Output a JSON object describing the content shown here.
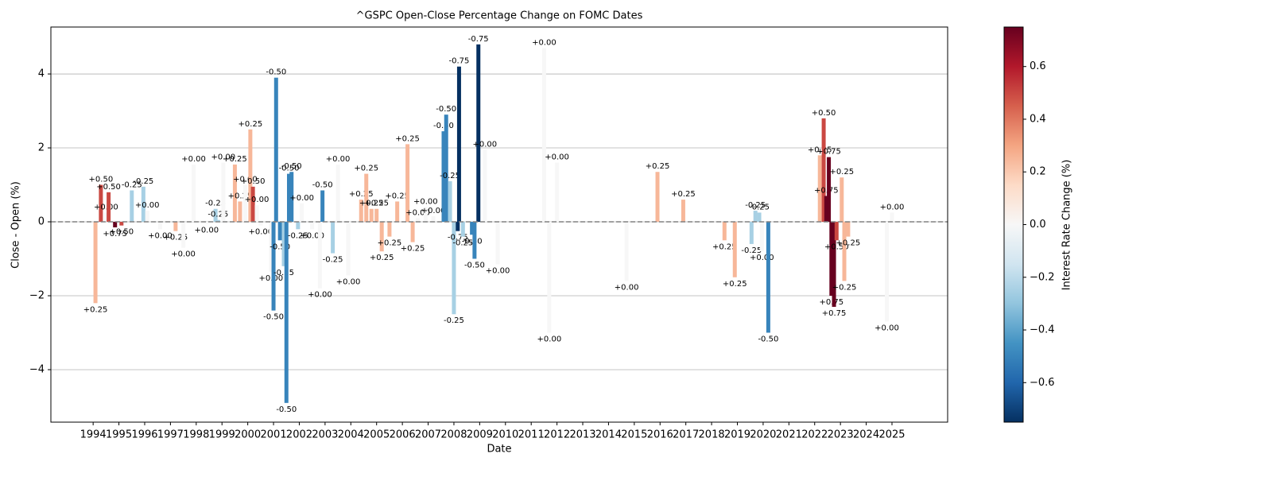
{
  "chart_data": {
    "type": "bar",
    "title": "^GSPC Open-Close Percentage Change on FOMC Dates",
    "x_label": "Date",
    "y_label": "Close - Open (%)",
    "colorbar_label": "Interest Rate Change (%)",
    "x": [
      1994.09,
      1994.3,
      1994.5,
      1994.6,
      1994.85,
      1995.1,
      1995.5,
      1995.95,
      1996.1,
      1996.6,
      1997.2,
      1997.5,
      1997.9,
      1998.4,
      1998.75,
      1998.85,
      1999.05,
      1999.5,
      1999.7,
      1999.9,
      2000.1,
      2000.2,
      2000.35,
      2000.5,
      2000.9,
      2001.0,
      2001.1,
      2001.25,
      2001.4,
      2001.5,
      2001.6,
      2001.7,
      2001.95,
      2002.1,
      2002.5,
      2002.8,
      2002.9,
      2003.3,
      2003.5,
      2003.9,
      2004.4,
      2004.6,
      2004.8,
      2005.0,
      2005.2,
      2005.5,
      2005.8,
      2006.2,
      2006.4,
      2006.6,
      2006.9,
      2007.2,
      2007.6,
      2007.7,
      2007.85,
      2008.0,
      2008.15,
      2008.2,
      2008.35,
      2008.7,
      2008.8,
      2008.95,
      2009.2,
      2009.7,
      2011.5,
      2011.7,
      2012.0,
      2014.7,
      2015.9,
      2016.9,
      2018.5,
      2018.9,
      2019.55,
      2019.7,
      2019.85,
      2019.95,
      2020.2,
      2022.2,
      2022.35,
      2022.45,
      2022.55,
      2022.65,
      2022.75,
      2022.85,
      2023.05,
      2023.15,
      2023.3,
      2024.8,
      2025.0
    ],
    "values": [
      -2.2,
      1.0,
      0.25,
      0.8,
      -0.15,
      -0.1,
      0.85,
      0.95,
      0.3,
      -0.2,
      -0.25,
      -0.7,
      1.55,
      -0.05,
      0.35,
      0.05,
      1.6,
      1.55,
      0.55,
      1.0,
      2.5,
      0.95,
      0.45,
      -0.1,
      -1.35,
      -2.4,
      3.9,
      -0.5,
      -1.2,
      -4.9,
      1.3,
      1.35,
      -0.2,
      0.5,
      -0.2,
      -1.8,
      0.85,
      -0.85,
      1.55,
      -1.45,
      0.6,
      1.3,
      0.35,
      0.35,
      -0.8,
      -0.4,
      0.55,
      2.1,
      -0.55,
      0.1,
      0.4,
      0.15,
      2.45,
      2.9,
      1.1,
      -2.5,
      -0.25,
      4.2,
      -0.4,
      -0.35,
      -1.0,
      4.8,
      1.95,
      -1.15,
      4.7,
      -3.0,
      1.6,
      -1.6,
      1.35,
      0.6,
      -0.5,
      -1.5,
      -0.6,
      0.3,
      0.25,
      -0.8,
      -3.0,
      1.8,
      2.8,
      0.7,
      1.75,
      -2.0,
      -2.3,
      -0.5,
      1.2,
      -1.6,
      -0.4,
      -2.7,
      0.25
    ],
    "rate_changes": [
      0.25,
      0.5,
      0,
      0.5,
      0.75,
      0.5,
      -0.25,
      -0.25,
      0,
      0,
      0.25,
      0,
      0,
      0,
      -0.25,
      -0.25,
      0,
      0.25,
      0.25,
      0,
      0.25,
      0.5,
      0,
      0,
      0,
      -0.5,
      -0.5,
      -0.5,
      -0.25,
      -0.5,
      -0.5,
      -0.5,
      -0.25,
      0,
      0,
      0,
      -0.5,
      -0.25,
      0,
      0,
      0.25,
      0.25,
      0.25,
      0.25,
      0.25,
      0.25,
      0.25,
      0.25,
      0.25,
      0,
      0,
      0,
      -0.5,
      -0.5,
      -0.25,
      -0.25,
      -0.75,
      -0.75,
      -0.25,
      -0.5,
      -0.5,
      -0.75,
      0,
      0,
      0,
      0,
      0,
      0,
      0.25,
      0.25,
      0.25,
      0.25,
      -0.25,
      -0.25,
      -0.25,
      0,
      -0.5,
      0.25,
      0.5,
      0.75,
      0.75,
      0.75,
      0.75,
      0.5,
      0.25,
      0.25,
      0.25,
      0,
      0
    ],
    "rate_change_labels": [
      "+0.25",
      "+0.50",
      "+0.00",
      "+0.50",
      "+0.75",
      "+0.50",
      "-0.25",
      "-0.25",
      "+0.00",
      "+0.00",
      "+0.25",
      "+0.00",
      "+0.00",
      "+0.00",
      "-0.25",
      "-0.25",
      "+0.00",
      "+0.25",
      "+0.25",
      "+0.00",
      "+0.25",
      "+0.50",
      "+0.00",
      "+0.00",
      "+0.00",
      "-0.50",
      "-0.50",
      "-0.50",
      "-0.25",
      "-0.50",
      "-0.50",
      "-0.50",
      "-0.25",
      "+0.00",
      "+0.00",
      "+0.00",
      "-0.50",
      "-0.25",
      "+0.00",
      "+0.00",
      "+0.25",
      "+0.25",
      "+0.25",
      "+0.25",
      "+0.25",
      "+0.25",
      "+0.25",
      "+0.25",
      "+0.25",
      "+0.00",
      "+0.00",
      "+0.00",
      "-0.50",
      "-0.50",
      "-0.25",
      "-0.25",
      "-0.75",
      "-0.75",
      "-0.25",
      "-0.50",
      "-0.50",
      "-0.75",
      "+0.00",
      "+0.00",
      "+0.00",
      "+0.00",
      "+0.00",
      "+0.00",
      "+0.25",
      "+0.25",
      "+0.25",
      "+0.25",
      "-0.25",
      "-0.25",
      "-0.25",
      "+0.00",
      "-0.50",
      "+0.25",
      "+0.50",
      "+0.75",
      "+0.75",
      "+0.75",
      "+0.75",
      "+0.50",
      "+0.25",
      "+0.25",
      "+0.25",
      "+0.00",
      "+0.00"
    ],
    "colormap": [
      "#053061",
      "#2166ac",
      "#4393c3",
      "#92c5de",
      "#d1e5f0",
      "#f7f7f7",
      "#fddbc7",
      "#f4a582",
      "#d6604d",
      "#b2182b",
      "#67001f"
    ],
    "clim": [
      -0.75,
      0.75
    ],
    "cticks": [
      {
        "value": -0.6,
        "label": "−0.6"
      },
      {
        "value": -0.4,
        "label": "−0.4"
      },
      {
        "value": -0.2,
        "label": "−0.2"
      },
      {
        "value": 0,
        "label": "0.0"
      },
      0.2,
      0.4,
      0.6
    ],
    "xlim": [
      1992.36,
      2027.16
    ],
    "xticks": [
      1994,
      1995,
      1996,
      1997,
      1998,
      1999,
      2000,
      2001,
      2002,
      2003,
      2004,
      2005,
      2006,
      2007,
      2008,
      2009,
      2010,
      2011,
      2012,
      2013,
      2014,
      2015,
      2016,
      2017,
      2018,
      2019,
      2020,
      2021,
      2022,
      2023,
      2024,
      2025
    ],
    "ylim": [
      -5.42,
      5.27
    ],
    "yticks": [
      {
        "value": -4,
        "label": "−4"
      },
      {
        "value": -2,
        "label": "−2"
      },
      0,
      2,
      4
    ],
    "reference_line": 0,
    "grid": true
  }
}
